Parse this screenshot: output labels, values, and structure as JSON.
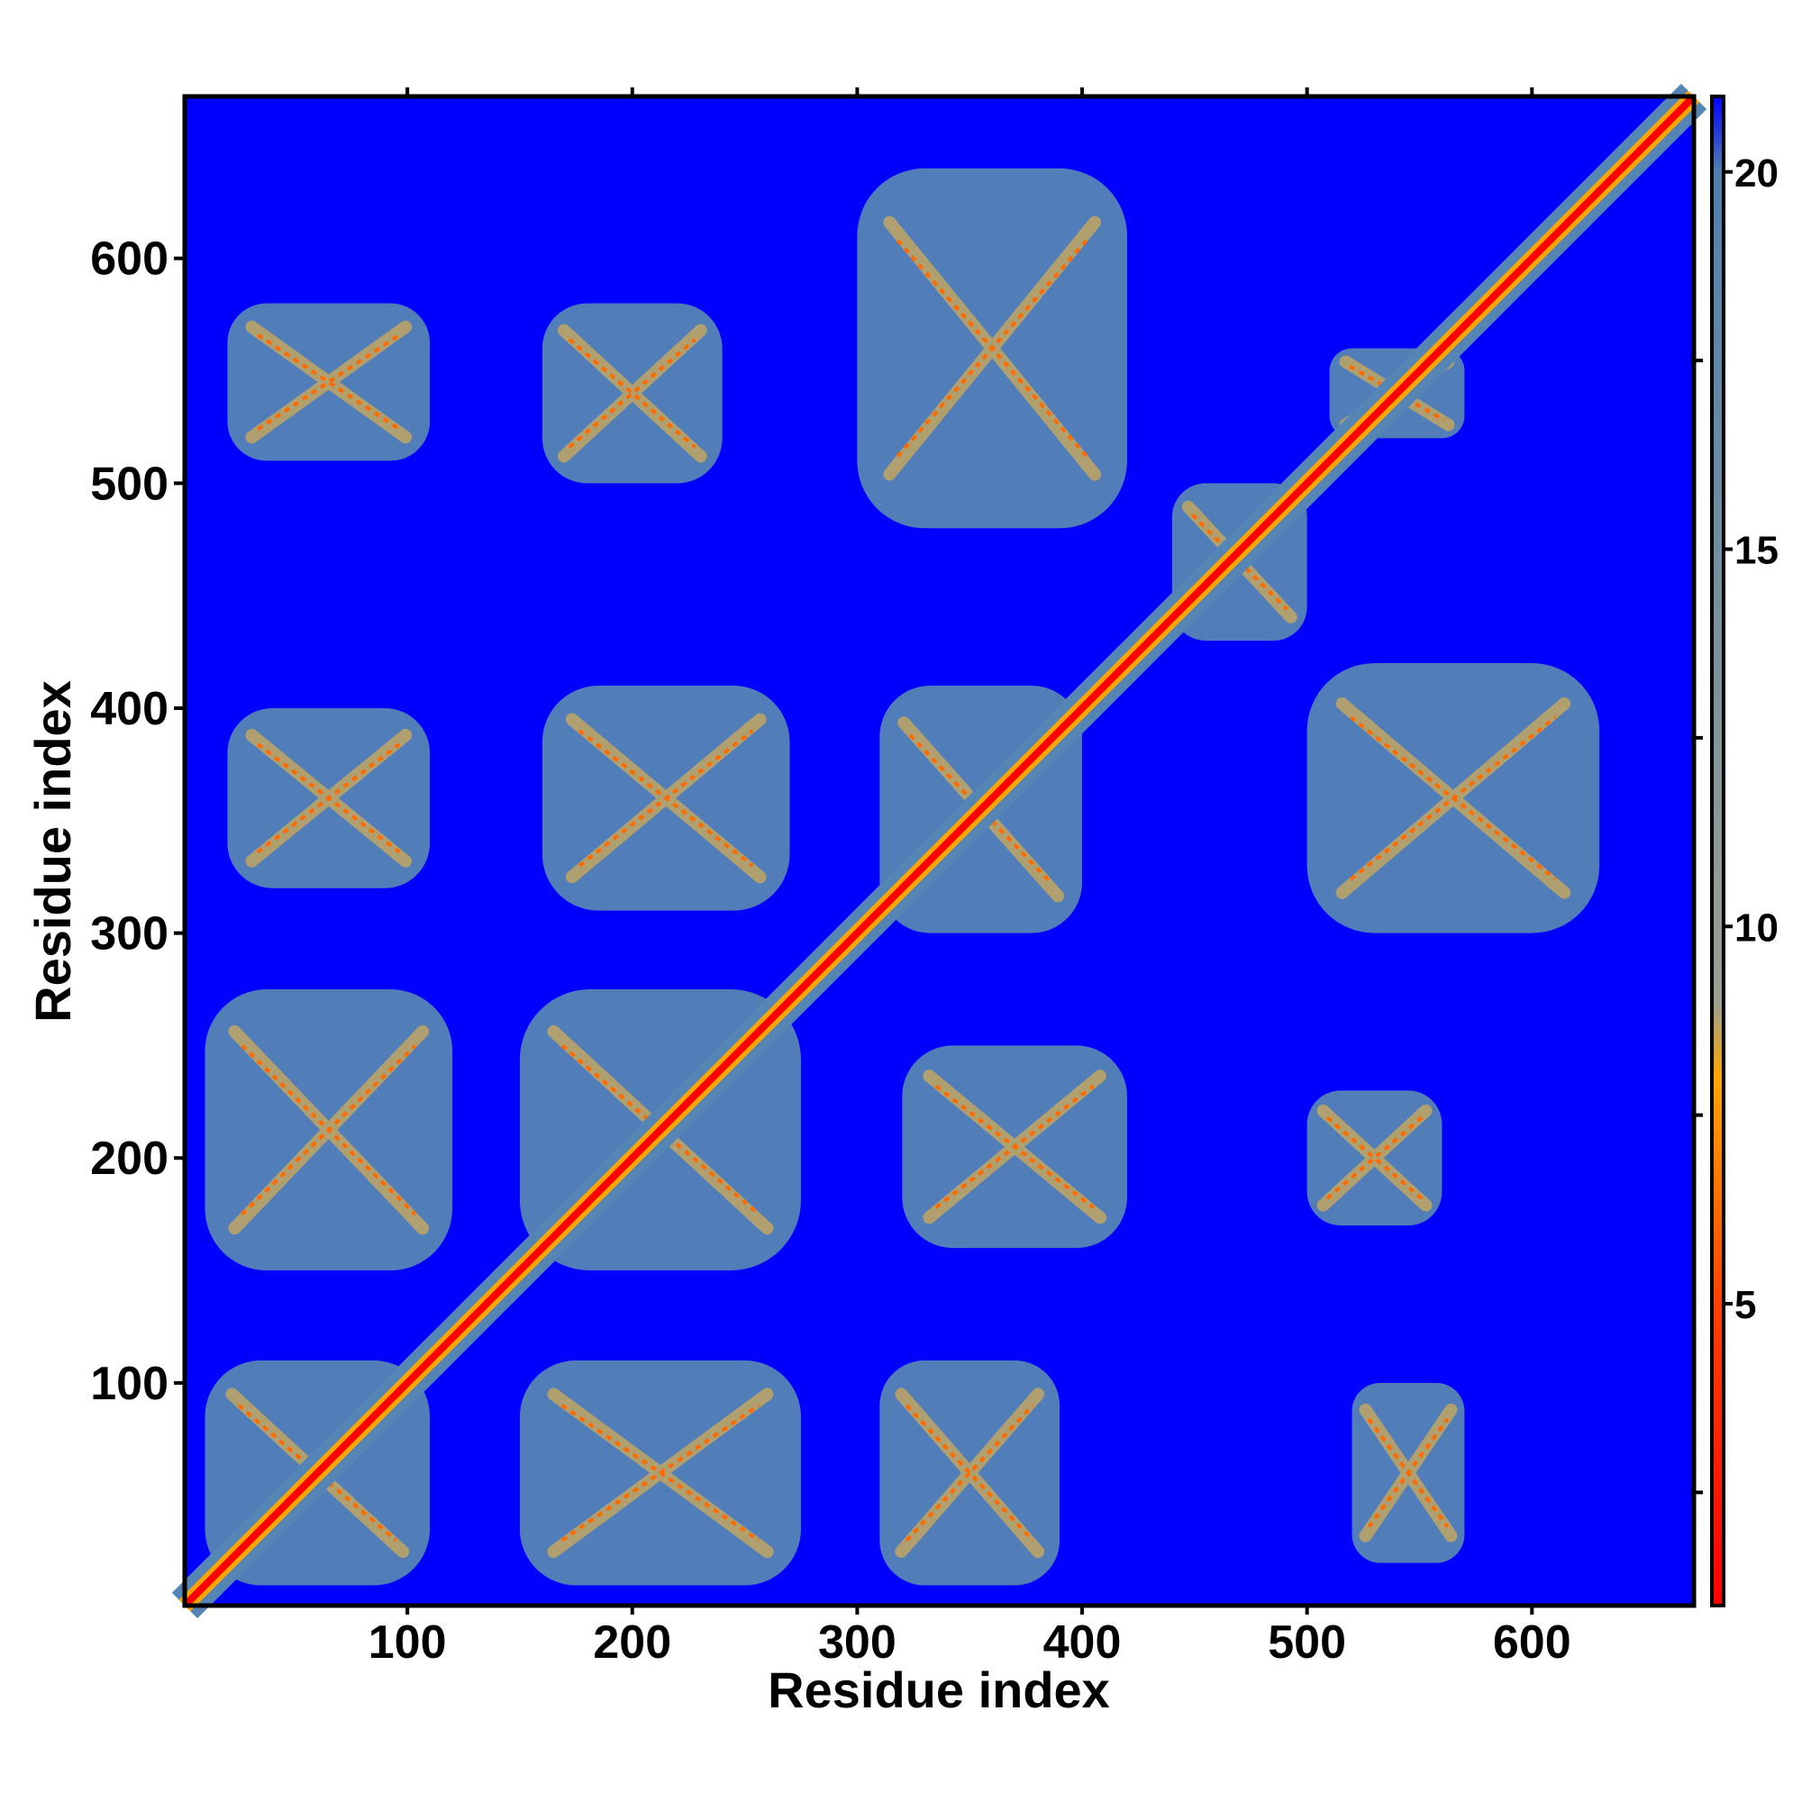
{
  "chart_data": {
    "type": "heatmap",
    "title": "",
    "xlabel": "Residue index",
    "ylabel": "Residue index",
    "xlim": [
      1,
      672
    ],
    "ylim": [
      1,
      672
    ],
    "x_ticks": [
      100,
      200,
      300,
      400,
      500,
      600
    ],
    "y_ticks": [
      100,
      200,
      300,
      400,
      500,
      600
    ],
    "x_tick_labels": [
      "100",
      "200",
      "300",
      "400",
      "500",
      "600"
    ],
    "y_tick_labels": [
      "100",
      "200",
      "300",
      "400",
      "500",
      "600"
    ],
    "colorbar": {
      "range": [
        1,
        21
      ],
      "ticks": [
        5,
        10,
        15,
        20
      ],
      "tick_labels": [
        "5",
        "10",
        "15",
        "20"
      ],
      "stops": [
        {
          "value": 1,
          "color": "#ff0000"
        },
        {
          "value": 5,
          "color": "#ff4000"
        },
        {
          "value": 8,
          "color": "#ffa500"
        },
        {
          "value": 9,
          "color": "#9aa090"
        },
        {
          "value": 20,
          "color": "#5080b0"
        },
        {
          "value": 21,
          "color": "#0000ff"
        }
      ]
    },
    "background_color": "#0000ff",
    "diagonal": {
      "from": 1,
      "to": 672
    },
    "contact_blocks": [
      {
        "x": [
          10,
          110
        ],
        "y": [
          10,
          110
        ]
      },
      {
        "x": [
          150,
          275
        ],
        "y": [
          10,
          110
        ]
      },
      {
        "x": [
          310,
          390
        ],
        "y": [
          10,
          110
        ]
      },
      {
        "x": [
          520,
          570
        ],
        "y": [
          20,
          100
        ]
      },
      {
        "x": [
          10,
          120
        ],
        "y": [
          150,
          275
        ]
      },
      {
        "x": [
          150,
          275
        ],
        "y": [
          150,
          275
        ]
      },
      {
        "x": [
          320,
          420
        ],
        "y": [
          160,
          250
        ]
      },
      {
        "x": [
          500,
          560
        ],
        "y": [
          170,
          230
        ]
      },
      {
        "x": [
          20,
          110
        ],
        "y": [
          320,
          400
        ]
      },
      {
        "x": [
          160,
          270
        ],
        "y": [
          310,
          410
        ]
      },
      {
        "x": [
          310,
          400
        ],
        "y": [
          300,
          410
        ]
      },
      {
        "x": [
          500,
          630
        ],
        "y": [
          300,
          420
        ]
      },
      {
        "x": [
          440,
          500
        ],
        "y": [
          430,
          500
        ]
      },
      {
        "x": [
          20,
          110
        ],
        "y": [
          510,
          580
        ]
      },
      {
        "x": [
          160,
          240
        ],
        "y": [
          500,
          580
        ]
      },
      {
        "x": [
          300,
          420
        ],
        "y": [
          480,
          640
        ]
      },
      {
        "x": [
          510,
          570
        ],
        "y": [
          520,
          560
        ]
      }
    ]
  }
}
